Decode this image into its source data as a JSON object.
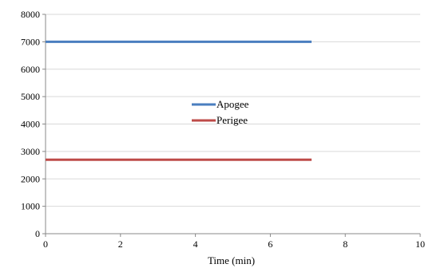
{
  "chart_data": {
    "type": "line",
    "title": "",
    "xlabel": "Time (min)",
    "ylabel": "",
    "xlim": [
      0,
      10
    ],
    "ylim": [
      0,
      8000
    ],
    "x_ticks": [
      0,
      2,
      4,
      6,
      8,
      10
    ],
    "y_ticks": [
      0,
      1000,
      2000,
      3000,
      4000,
      5000,
      6000,
      7000,
      8000
    ],
    "x_tick_labels": [
      "0",
      "2",
      "4",
      "6",
      "8",
      "10"
    ],
    "y_tick_labels": [
      "0",
      "1000",
      "2000",
      "3000",
      "4000",
      "5000",
      "6000",
      "7000",
      "8000"
    ],
    "grid": "horizontal",
    "legend_position": "center",
    "series": [
      {
        "name": "Apogee",
        "color": "#4a7ebf",
        "x": [
          0,
          7.1
        ],
        "y": [
          7000,
          7000
        ]
      },
      {
        "name": "Perigee",
        "color": "#be4b48",
        "x": [
          0,
          7.1
        ],
        "y": [
          2700,
          2700
        ]
      }
    ]
  }
}
